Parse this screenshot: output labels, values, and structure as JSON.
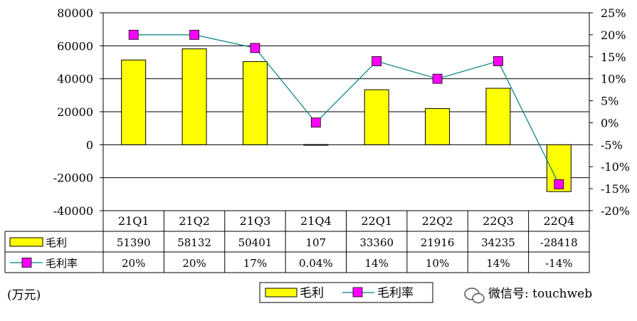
{
  "chart_data": {
    "type": "bar",
    "categories": [
      "21Q1",
      "21Q2",
      "21Q3",
      "21Q4",
      "22Q1",
      "22Q2",
      "22Q3",
      "22Q4"
    ],
    "series": [
      {
        "name": "毛利",
        "type": "bar",
        "axis": "left",
        "color": "#FFFF00",
        "values": [
          51390,
          58132,
          50401,
          107,
          33360,
          21916,
          34235,
          -28418
        ]
      },
      {
        "name": "毛利率",
        "type": "line",
        "axis": "right",
        "color": "#FF00FF",
        "line_color": "#008080",
        "values": [
          20,
          20,
          17,
          0.04,
          14,
          10,
          14,
          -14
        ]
      }
    ],
    "y_left": {
      "ylim": [
        -40000,
        80000
      ],
      "ticks": [
        "80000",
        "60000",
        "40000",
        "20000",
        "0",
        "-20000",
        "-40000"
      ]
    },
    "y_right": {
      "ylim": [
        -20,
        25
      ],
      "ticks": [
        "25%",
        "20%",
        "15%",
        "10%",
        "5%",
        "0%",
        "-5%",
        "-10%",
        "-15%",
        "-20%"
      ]
    },
    "table": {
      "rows": [
        {
          "label": "毛利",
          "cells": [
            "51390",
            "58132",
            "50401",
            "107",
            "33360",
            "21916",
            "34235",
            "-28418"
          ]
        },
        {
          "label": "毛利率",
          "cells": [
            "20%",
            "20%",
            "17%",
            "0.04%",
            "14%",
            "10%",
            "14%",
            "-14%"
          ]
        }
      ]
    },
    "unit_label": "(万元)",
    "legend": {
      "position": "bottom-center",
      "items": [
        "毛利",
        "毛利率"
      ]
    },
    "watermark": "微信号: touchweb",
    "grid": true
  }
}
